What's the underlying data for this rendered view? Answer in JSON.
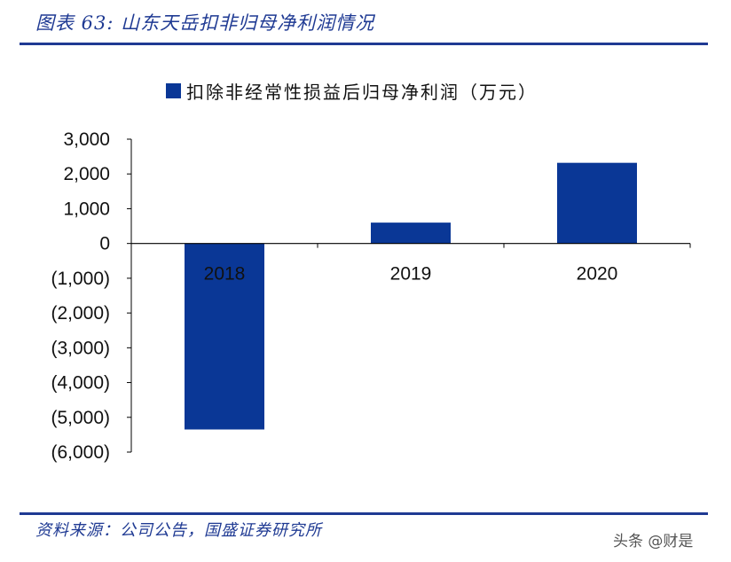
{
  "figure_title": "图表 63:  山东天岳扣非归母净利润情况",
  "source_text": "资料来源：公司公告，国盛证券研究所",
  "watermark": "头条 @财是",
  "colors": {
    "bar": "#0a3796",
    "accent": "#1f3a93"
  },
  "chart_data": {
    "type": "bar",
    "categories": [
      "2018",
      "2019",
      "2020"
    ],
    "series": [
      {
        "name": "扣除非经常性损益后归母净利润（万元）",
        "values": [
          -5350,
          600,
          2320
        ]
      }
    ],
    "ylim": [
      -6000,
      3000
    ],
    "yticks": [
      3000,
      2000,
      1000,
      0,
      -1000,
      -2000,
      -3000,
      -4000,
      -5000,
      -6000
    ],
    "ytick_labels": [
      "3,000",
      "2,000",
      "1,000",
      "0",
      "(1,000)",
      "(2,000)",
      "(3,000)",
      "(4,000)",
      "(5,000)",
      "(6,000)"
    ],
    "legend_position": "top",
    "grid": false,
    "xlabel": "",
    "ylabel": ""
  }
}
